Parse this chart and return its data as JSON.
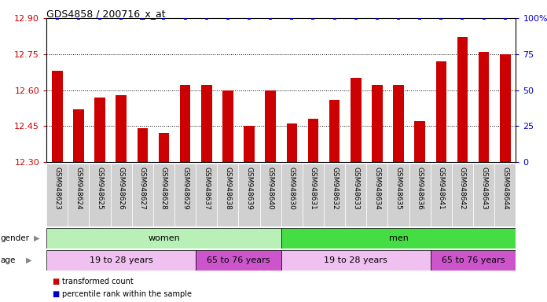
{
  "title": "GDS4858 / 200716_x_at",
  "samples": [
    "GSM948623",
    "GSM948624",
    "GSM948625",
    "GSM948626",
    "GSM948627",
    "GSM948628",
    "GSM948629",
    "GSM948637",
    "GSM948638",
    "GSM948639",
    "GSM948640",
    "GSM948630",
    "GSM948631",
    "GSM948632",
    "GSM948633",
    "GSM948634",
    "GSM948635",
    "GSM948636",
    "GSM948641",
    "GSM948642",
    "GSM948643",
    "GSM948644"
  ],
  "values": [
    12.68,
    12.52,
    12.57,
    12.58,
    12.44,
    12.42,
    12.62,
    12.62,
    12.6,
    12.45,
    12.6,
    12.46,
    12.48,
    12.56,
    12.65,
    12.62,
    12.62,
    12.47,
    12.72,
    12.82,
    12.76,
    12.75
  ],
  "percentile": [
    100,
    100,
    100,
    100,
    100,
    100,
    100,
    100,
    100,
    100,
    100,
    100,
    100,
    100,
    100,
    100,
    100,
    100,
    100,
    100,
    100,
    100
  ],
  "ylim_left": [
    12.3,
    12.9
  ],
  "ylim_right": [
    0,
    100
  ],
  "yticks_left": [
    12.3,
    12.45,
    12.6,
    12.75,
    12.9
  ],
  "yticks_right": [
    0,
    25,
    50,
    75,
    100
  ],
  "bar_color": "#cc0000",
  "dot_color": "#0000cc",
  "background_color": "#ffffff",
  "plot_bg_color": "#ffffff",
  "grid_color": "#888888",
  "left_tick_color": "#cc0000",
  "right_tick_color": "#0000cc",
  "gender_groups": [
    {
      "label": "women",
      "start": 0,
      "end": 10,
      "color": "#b8f0b8"
    },
    {
      "label": "men",
      "start": 11,
      "end": 21,
      "color": "#44dd44"
    }
  ],
  "age_groups": [
    {
      "label": "19 to 28 years",
      "start": 0,
      "end": 6,
      "color": "#f0c0f0"
    },
    {
      "label": "65 to 76 years",
      "start": 7,
      "end": 10,
      "color": "#cc55cc"
    },
    {
      "label": "19 to 28 years",
      "start": 11,
      "end": 17,
      "color": "#f0c0f0"
    },
    {
      "label": "65 to 76 years",
      "start": 18,
      "end": 21,
      "color": "#cc55cc"
    }
  ],
  "legend_bar_label": "transformed count",
  "legend_dot_label": "percentile rank within the sample"
}
